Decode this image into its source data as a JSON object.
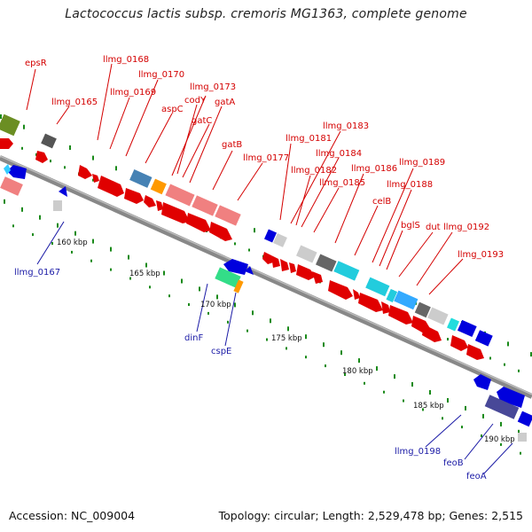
{
  "title": "Lactococcus lactis subsp. cremoris MG1363, complete genome",
  "footer": {
    "accession": "Accession: NC_009004",
    "topology": "Topology: circular; Length: 2,529,478 bp; Genes: 2,515"
  },
  "scale_labels": [
    "160 kbp",
    "165 kbp",
    "170 kbp",
    "175 kbp",
    "180 kbp",
    "185 kbp",
    "190 kbp"
  ],
  "gene_labels_upper": [
    "epsR",
    "llmg_0165",
    "llmg_0168",
    "llmg_0169",
    "llmg_0170",
    "aspC",
    "codY",
    "llmg_0173",
    "gatC",
    "gatA",
    "gatB",
    "llmg_0177",
    "llmg_0181",
    "llmg_0183",
    "llmg_0182",
    "llmg_0184",
    "llmg_0185",
    "llmg_0186",
    "celB",
    "llmg_0189",
    "llmg_0188",
    "bglS",
    "dut",
    "llmg_0192",
    "llmg_0193"
  ],
  "gene_labels_lower": [
    "llmg_0167",
    "dinF",
    "cspE",
    "llmg_0198",
    "feoB",
    "feoA"
  ],
  "colors": {
    "forward_cds": "#ff0000",
    "reverse_cds": "#0000ee",
    "upper_label": "#d40000",
    "lower_label": "#1a1aa6",
    "backbone": "#888888"
  }
}
